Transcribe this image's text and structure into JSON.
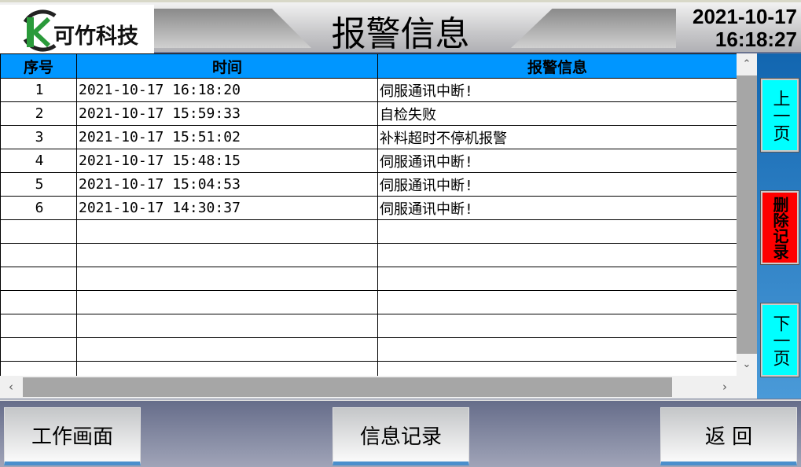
{
  "header": {
    "logo_text": "可竹科技",
    "title": "报警信息",
    "date": "2021-10-17",
    "time": "16:18:27"
  },
  "table": {
    "columns": [
      "序号",
      "时间",
      "报警信息"
    ],
    "rows": [
      {
        "no": "1",
        "time": "2021-10-17 16:18:20",
        "msg": "伺服通讯中断!"
      },
      {
        "no": "2",
        "time": "2021-10-17 15:59:33",
        "msg": "自检失败"
      },
      {
        "no": "3",
        "time": "2021-10-17 15:51:02",
        "msg": "补料超时不停机报警"
      },
      {
        "no": "4",
        "time": "2021-10-17 15:48:15",
        "msg": "伺服通讯中断!"
      },
      {
        "no": "5",
        "time": "2021-10-17 15:04:53",
        "msg": "伺服通讯中断!"
      },
      {
        "no": "6",
        "time": "2021-10-17 14:30:37",
        "msg": "伺服通讯中断!"
      }
    ],
    "empty_rows": 7
  },
  "side": {
    "prev": "上一页",
    "delete": "删除记录",
    "next": "下一页"
  },
  "footer": {
    "work": "工作画面",
    "info": "信息记录",
    "back": "返 回"
  },
  "colors": {
    "header_blue": "#0096ff",
    "nav_cyan": "#00ffff",
    "delete_red": "#ff0000"
  }
}
